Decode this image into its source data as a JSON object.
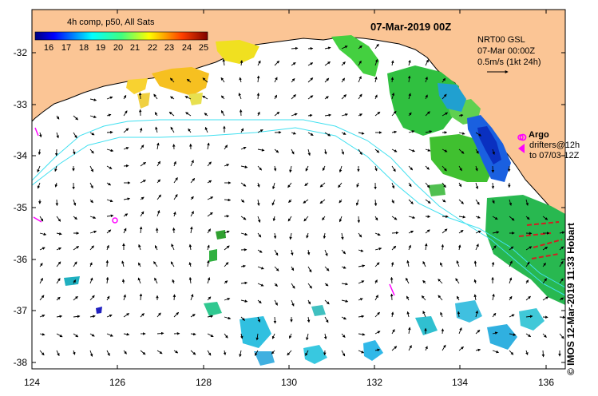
{
  "header": {
    "date_title": "07-Mar-2019 00Z",
    "legend_title": "4h comp, p50, All Sats"
  },
  "colorbar": {
    "labels": [
      "16",
      "17",
      "18",
      "19",
      "20",
      "21",
      "22",
      "23",
      "24",
      "25"
    ],
    "colors": [
      "#00007f",
      "#0000ff",
      "#0080ff",
      "#00ffff",
      "#40ff80",
      "#80ff40",
      "#ffff00",
      "#ff8000",
      "#ff0000",
      "#7f0000"
    ]
  },
  "info": {
    "line1": "NRT00 GSL",
    "line2": "07-Mar 00:00Z",
    "line3": "0.5m/s (1kt 24h)"
  },
  "argo": {
    "label": "Argo",
    "drifters_line1": "drifters@12h",
    "drifters_line2": "to 07/03-12Z"
  },
  "credit": "© IMOS 12-Mar-2019 11:33 Hobart",
  "axes": {
    "x_ticks": [
      "124",
      "126",
      "128",
      "130",
      "132",
      "134",
      "136"
    ],
    "y_ticks": [
      "-32",
      "-33",
      "-34",
      "-35",
      "-36",
      "-37",
      "-38"
    ]
  },
  "colors": {
    "land": "#fbc595",
    "contour": "#40e0f0",
    "argo": "#ff00ff",
    "frame": "#000000"
  }
}
